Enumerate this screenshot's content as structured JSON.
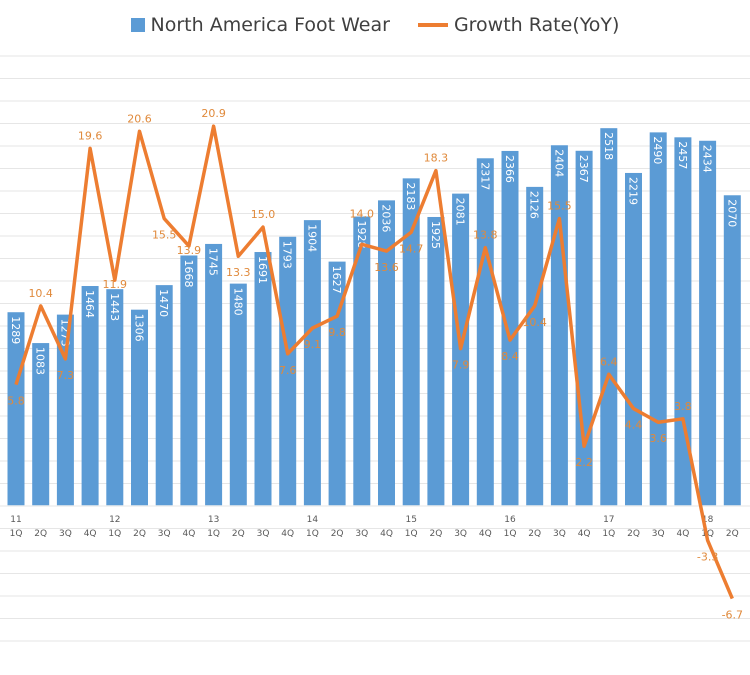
{
  "chart_data": {
    "type": "bar+line",
    "title": "",
    "legend_position": "top",
    "grid": true,
    "categories": [
      "1Q",
      "2Q",
      "3Q",
      "4Q",
      "1Q",
      "2Q",
      "3Q",
      "4Q",
      "1Q",
      "2Q",
      "3Q",
      "4Q",
      "1Q",
      "2Q",
      "3Q",
      "4Q",
      "1Q",
      "2Q",
      "3Q",
      "4Q",
      "1Q",
      "2Q",
      "3Q",
      "4Q",
      "1Q",
      "2Q",
      "3Q",
      "4Q",
      "1Q",
      "2Q"
    ],
    "years": [
      "11",
      "",
      "",
      "",
      "12",
      "",
      "",
      "",
      "13",
      "",
      "",
      "",
      "14",
      "",
      "",
      "",
      "15",
      "",
      "",
      "",
      "16",
      "",
      "",
      "",
      "17",
      "",
      "",
      "",
      "18",
      ""
    ],
    "series": [
      {
        "name": "North America Foot Wear",
        "type": "bar",
        "color": "#5b9bd5",
        "axis": "primary",
        "values": [
          1289,
          1083,
          1273,
          1464,
          1443,
          1306,
          1470,
          1668,
          1745,
          1480,
          1691,
          1793,
          1904,
          1627,
          1928,
          2036,
          2183,
          1925,
          2081,
          2317,
          2366,
          2126,
          2404,
          2367,
          2518,
          2219,
          2490,
          2457,
          2434,
          2070
        ]
      },
      {
        "name": "Growth Rate(YoY)",
        "type": "line",
        "color": "#ed7d31",
        "axis": "secondary",
        "values": [
          5.8,
          10.4,
          7.3,
          19.6,
          11.9,
          20.6,
          15.5,
          13.9,
          20.9,
          13.3,
          15.0,
          7.6,
          9.1,
          9.8,
          14.0,
          13.6,
          14.7,
          18.3,
          7.9,
          13.8,
          8.4,
          10.4,
          15.5,
          2.2,
          6.4,
          4.4,
          3.6,
          3.8,
          -3.3,
          -6.7
        ]
      }
    ],
    "primary_ylim": [
      -1000,
      3000
    ],
    "secondary_ylim": [
      -10,
      25
    ]
  }
}
